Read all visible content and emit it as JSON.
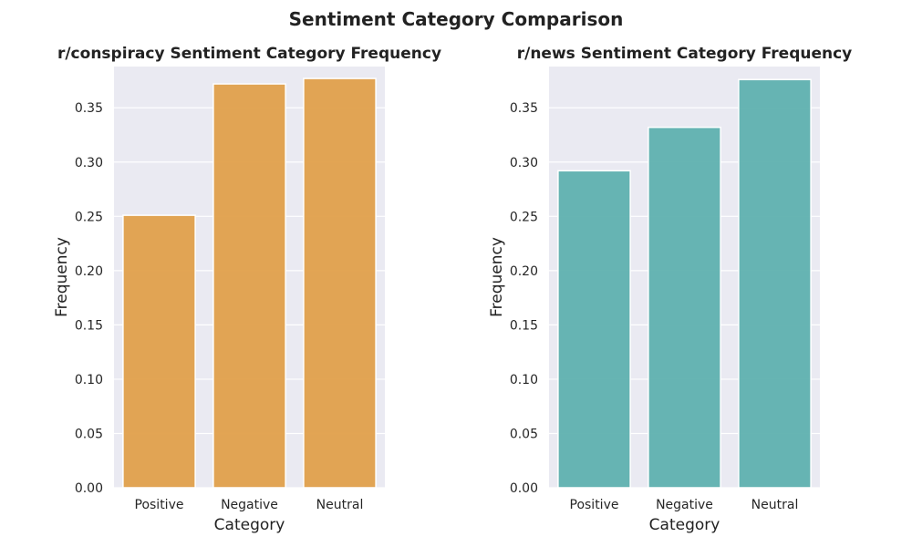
{
  "chart_data": {
    "title": "Sentiment Category Comparison",
    "type": "bar",
    "panels": [
      {
        "title": "r/conspiracy Sentiment Category Frequency",
        "xlabel": "Category",
        "ylabel": "Frequency",
        "categories": [
          "Positive",
          "Negative",
          "Neutral"
        ],
        "values": [
          0.251,
          0.372,
          0.377
        ],
        "ylim": [
          0,
          0.388
        ],
        "yticks": [
          "0.00",
          "0.05",
          "0.10",
          "0.15",
          "0.20",
          "0.25",
          "0.30",
          "0.35"
        ],
        "color": "#E0A04B",
        "grid": true
      },
      {
        "title": "r/news Sentiment Category Frequency",
        "xlabel": "Category",
        "ylabel": "Frequency",
        "categories": [
          "Positive",
          "Negative",
          "Neutral"
        ],
        "values": [
          0.292,
          0.332,
          0.376
        ],
        "ylim": [
          0,
          0.388
        ],
        "yticks": [
          "0.00",
          "0.05",
          "0.10",
          "0.15",
          "0.20",
          "0.25",
          "0.30",
          "0.35"
        ],
        "color": "#5FB1AF",
        "grid": true
      }
    ]
  }
}
